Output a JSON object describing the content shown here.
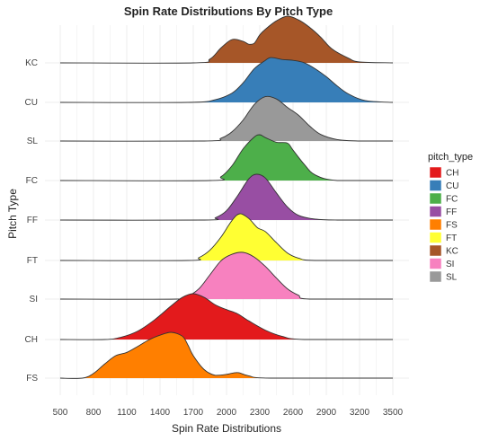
{
  "chart_data": {
    "type": "ridgeline",
    "title": "Spin Rate Distributions By Pitch Type",
    "xlabel": "Spin Rate Distributions",
    "ylabel": "Pitch Type",
    "xlim": [
      450,
      3550
    ],
    "x_ticks": [
      "500",
      "800",
      "1100",
      "1400",
      "1700",
      "2000",
      "2300",
      "2600",
      "2900",
      "3200",
      "3500"
    ],
    "grid": true,
    "legend": {
      "title": "pitch_type",
      "placement": "right",
      "entries": [
        {
          "label": "CH",
          "color": "#e31a1c"
        },
        {
          "label": "CU",
          "color": "#377eb8"
        },
        {
          "label": "FC",
          "color": "#4daf4a"
        },
        {
          "label": "FF",
          "color": "#984ea3"
        },
        {
          "label": "FS",
          "color": "#ff7f00"
        },
        {
          "label": "FT",
          "color": "#ffff33"
        },
        {
          "label": "KC",
          "color": "#a65628"
        },
        {
          "label": "SI",
          "color": "#f781bf"
        },
        {
          "label": "SL",
          "color": "#999999"
        }
      ]
    },
    "series": [
      {
        "name": "KC",
        "color": "#a65628",
        "x": [
          500,
          1700,
          1850,
          1950,
          2050,
          2150,
          2200,
          2250,
          2300,
          2350,
          2450,
          2550,
          2650,
          2750,
          2850,
          2950,
          3100,
          3200,
          3500
        ],
        "density": [
          0,
          0,
          0.08,
          0.32,
          0.5,
          0.46,
          0.4,
          0.42,
          0.6,
          0.72,
          0.9,
          1.0,
          0.92,
          0.76,
          0.55,
          0.3,
          0.1,
          0.02,
          0
        ]
      },
      {
        "name": "CU",
        "color": "#377eb8",
        "x": [
          500,
          1650,
          1900,
          2050,
          2150,
          2250,
          2350,
          2400,
          2500,
          2600,
          2700,
          2800,
          2900,
          3000,
          3100,
          3250,
          3500
        ],
        "density": [
          0,
          0,
          0.06,
          0.2,
          0.42,
          0.72,
          0.9,
          0.96,
          0.92,
          0.9,
          0.85,
          0.72,
          0.55,
          0.35,
          0.18,
          0.04,
          0
        ]
      },
      {
        "name": "SL",
        "color": "#999999",
        "x": [
          500,
          1800,
          1950,
          2050,
          2150,
          2250,
          2350,
          2450,
          2550,
          2650,
          2750,
          2850,
          3000,
          3200,
          3500
        ],
        "density": [
          0,
          0,
          0.06,
          0.2,
          0.45,
          0.78,
          0.95,
          0.9,
          0.72,
          0.55,
          0.32,
          0.14,
          0.03,
          0,
          0
        ]
      },
      {
        "name": "FC",
        "color": "#4daf4a",
        "x": [
          500,
          1850,
          1950,
          2050,
          2150,
          2250,
          2300,
          2350,
          2450,
          2550,
          2600,
          2700,
          2800,
          3000,
          3500
        ],
        "density": [
          0,
          0,
          0.08,
          0.32,
          0.68,
          0.93,
          0.98,
          0.92,
          0.82,
          0.8,
          0.65,
          0.35,
          0.12,
          0,
          0
        ]
      },
      {
        "name": "FF",
        "color": "#984ea3",
        "x": [
          500,
          1800,
          1900,
          2000,
          2100,
          2200,
          2270,
          2350,
          2450,
          2550,
          2650,
          2800,
          3000,
          3500
        ],
        "density": [
          0,
          0,
          0.05,
          0.2,
          0.52,
          0.88,
          0.98,
          0.9,
          0.58,
          0.28,
          0.1,
          0.02,
          0,
          0
        ]
      },
      {
        "name": "FT",
        "color": "#ffff33",
        "x": [
          500,
          1650,
          1750,
          1850,
          1950,
          2050,
          2120,
          2200,
          2280,
          2350,
          2450,
          2550,
          2650,
          2800,
          3500
        ],
        "density": [
          0,
          0,
          0.06,
          0.22,
          0.5,
          0.86,
          1.0,
          0.9,
          0.7,
          0.62,
          0.38,
          0.16,
          0.05,
          0,
          0
        ]
      },
      {
        "name": "SI",
        "color": "#f781bf",
        "x": [
          500,
          1550,
          1650,
          1750,
          1850,
          1950,
          2050,
          2150,
          2250,
          2350,
          2450,
          2550,
          2650,
          2750,
          3500
        ],
        "density": [
          0,
          0,
          0.06,
          0.22,
          0.52,
          0.82,
          0.96,
          1.0,
          0.9,
          0.7,
          0.45,
          0.22,
          0.08,
          0,
          0
        ]
      },
      {
        "name": "CH",
        "color": "#e31a1c",
        "x": [
          500,
          900,
          1050,
          1200,
          1350,
          1500,
          1600,
          1700,
          1800,
          1900,
          2000,
          2100,
          2200,
          2350,
          2500,
          2700,
          3500
        ],
        "density": [
          0,
          0,
          0.05,
          0.18,
          0.42,
          0.72,
          0.9,
          0.98,
          0.9,
          0.74,
          0.64,
          0.55,
          0.4,
          0.2,
          0.07,
          0,
          0
        ]
      },
      {
        "name": "FS",
        "color": "#ff7f00",
        "x": [
          500,
          700,
          800,
          900,
          1000,
          1100,
          1200,
          1300,
          1400,
          1500,
          1600,
          1650,
          1700,
          1800,
          1900,
          2000,
          2100,
          2200,
          2400,
          3500
        ],
        "density": [
          0,
          0,
          0.1,
          0.3,
          0.48,
          0.55,
          0.68,
          0.82,
          0.92,
          0.98,
          0.9,
          0.72,
          0.48,
          0.18,
          0.06,
          0.08,
          0.12,
          0.05,
          0,
          0
        ]
      }
    ]
  }
}
